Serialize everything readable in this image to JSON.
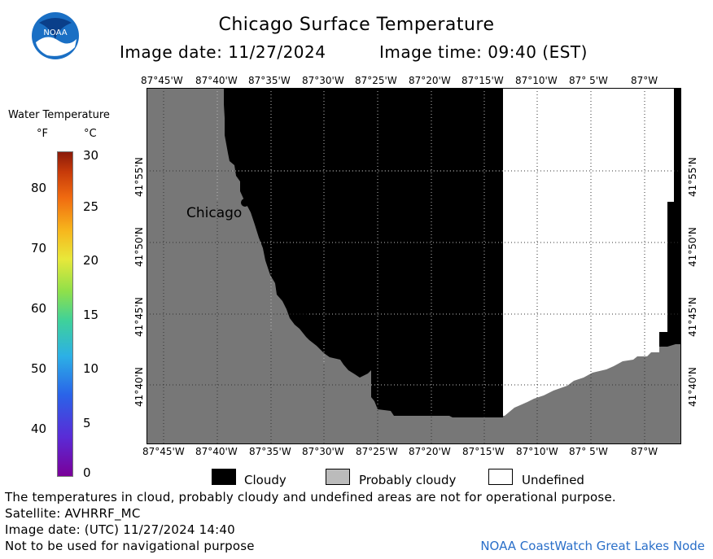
{
  "header": {
    "title": "Chicago Surface Temperature",
    "image_date": "Image date: 11/27/2024",
    "image_time": "Image time: 09:40 (EST)",
    "logo_text": "NOAA"
  },
  "colorbar": {
    "title": "Water Temperature",
    "unit_f": "°F",
    "unit_c": "°C",
    "f_ticks": [
      "80",
      "70",
      "60",
      "50",
      "40"
    ],
    "c_ticks": [
      "30",
      "25",
      "20",
      "15",
      "10",
      "5",
      "0"
    ],
    "colors": [
      "#7a0099",
      "#2a63e8",
      "#3fd19a",
      "#e8e83a",
      "#f06a10",
      "#8a1a0a"
    ]
  },
  "map": {
    "lon_labels": [
      "87°45'W",
      "87°40'W",
      "87°35'W",
      "87°30'W",
      "87°25'W",
      "87°20'W",
      "87°15'W",
      "87°10'W",
      "87° 5'W",
      "87°W"
    ],
    "lat_labels": [
      "41°55'N",
      "41°50'N",
      "41°45'N",
      "41°40'N"
    ],
    "city_label": "Chicago",
    "colors": {
      "land": "#777777",
      "cloud": "#000000",
      "undefined": "#ffffff"
    }
  },
  "legend": {
    "cloudy": "Cloudy",
    "probably_cloudy": "Probably cloudy",
    "undefined": "Undefined"
  },
  "footer": {
    "note": "The temperatures in cloud, probably cloudy and undefined areas are not for operational purpose.",
    "satellite": "Satellite: AVHRRF_MC",
    "utc_date": "Image date: (UTC) 11/27/2024  14:40",
    "nav_warning": "Not to be used for navigational purpose",
    "credit": "NOAA CoastWatch Great Lakes Node"
  }
}
